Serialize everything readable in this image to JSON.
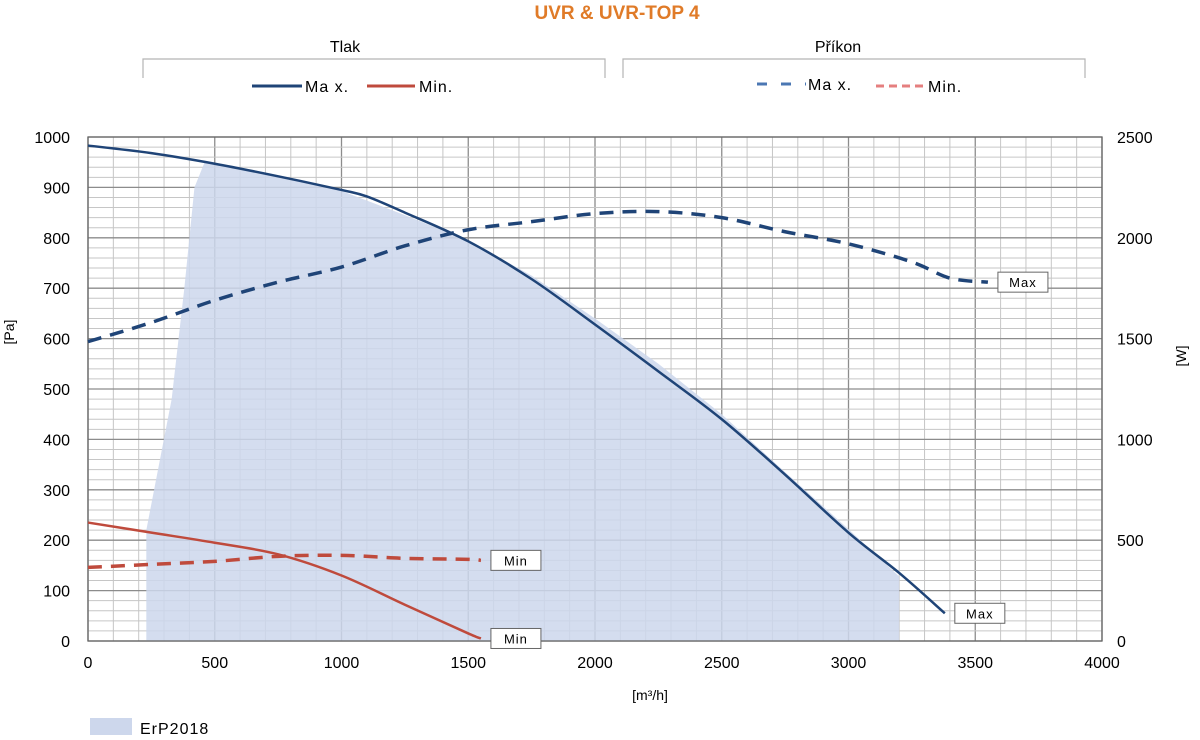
{
  "chart_data": {
    "type": "line",
    "title": "UVR & UVR-TOP 4",
    "title_color": "#e07b28",
    "xlabel": "[m³/h]",
    "ylabel_left": "[Pa]",
    "ylabel_right": "[W]",
    "xlim": [
      0,
      4000
    ],
    "ylim_left": [
      0,
      1000
    ],
    "ylim_right": [
      0,
      2500
    ],
    "xticks": [
      0,
      500,
      1000,
      1500,
      2000,
      2500,
      3000,
      3500,
      4000
    ],
    "yticks_left": [
      0,
      100,
      200,
      300,
      400,
      500,
      600,
      700,
      800,
      900,
      1000
    ],
    "yticks_right": [
      0,
      500,
      1000,
      1500,
      2000,
      2500
    ],
    "grid": true,
    "groups": [
      {
        "label": "Tlak",
        "items": [
          {
            "label": "Ma x.",
            "series": "pressure_max"
          },
          {
            "label": "Min.",
            "series": "pressure_min"
          }
        ]
      },
      {
        "label": "Příkon",
        "items": [
          {
            "label": "Ma x.",
            "series": "power_max"
          },
          {
            "label": "Min.",
            "series": "power_min"
          }
        ]
      }
    ],
    "area": {
      "label": "ErP2018",
      "color": "#cdd7ec",
      "upper": [
        [
          230,
          220
        ],
        [
          330,
          480
        ],
        [
          380,
          700
        ],
        [
          420,
          900
        ],
        [
          460,
          950
        ],
        [
          700,
          925
        ],
        [
          1000,
          893
        ],
        [
          1250,
          845
        ],
        [
          1500,
          795
        ],
        [
          1750,
          725
        ],
        [
          2000,
          640
        ],
        [
          2250,
          550
        ],
        [
          2500,
          450
        ],
        [
          2750,
          335
        ],
        [
          3000,
          222
        ],
        [
          3200,
          128
        ]
      ],
      "lower": [
        [
          3200,
          0
        ],
        [
          230,
          0
        ]
      ]
    },
    "series": [
      {
        "id": "pressure_max",
        "axis": "left",
        "color": "#1f4477",
        "dash": false,
        "x": [
          0,
          250,
          500,
          750,
          1000,
          1100,
          1250,
          1500,
          1750,
          2000,
          2250,
          2500,
          2750,
          3000,
          3200,
          3380
        ],
        "y": [
          983,
          968,
          947,
          922,
          895,
          882,
          850,
          793,
          718,
          628,
          535,
          440,
          330,
          215,
          135,
          55
        ],
        "end_label": "Max"
      },
      {
        "id": "pressure_min",
        "axis": "left",
        "color": "#bf4a3c",
        "dash": false,
        "x": [
          0,
          250,
          500,
          750,
          1000,
          1250,
          1500,
          1550
        ],
        "y": [
          235,
          215,
          195,
          172,
          130,
          72,
          15,
          5
        ],
        "end_label": "Min"
      },
      {
        "id": "power_max",
        "axis": "right",
        "color": "#1f4477",
        "dash": true,
        "x": [
          0,
          250,
          500,
          750,
          1000,
          1250,
          1500,
          1750,
          2000,
          2250,
          2500,
          2750,
          3000,
          3250,
          3400,
          3550
        ],
        "y": [
          1485,
          1580,
          1690,
          1780,
          1855,
          1960,
          2040,
          2080,
          2120,
          2130,
          2100,
          2030,
          1970,
          1880,
          1800,
          1780
        ],
        "end_label": "Max"
      },
      {
        "id": "power_min",
        "axis": "right",
        "color": "#bf4a3c",
        "dash": true,
        "x": [
          0,
          250,
          500,
          750,
          1000,
          1250,
          1500,
          1550
        ],
        "y": [
          365,
          380,
          395,
          420,
          425,
          410,
          405,
          400
        ],
        "end_label": "Min"
      }
    ]
  }
}
